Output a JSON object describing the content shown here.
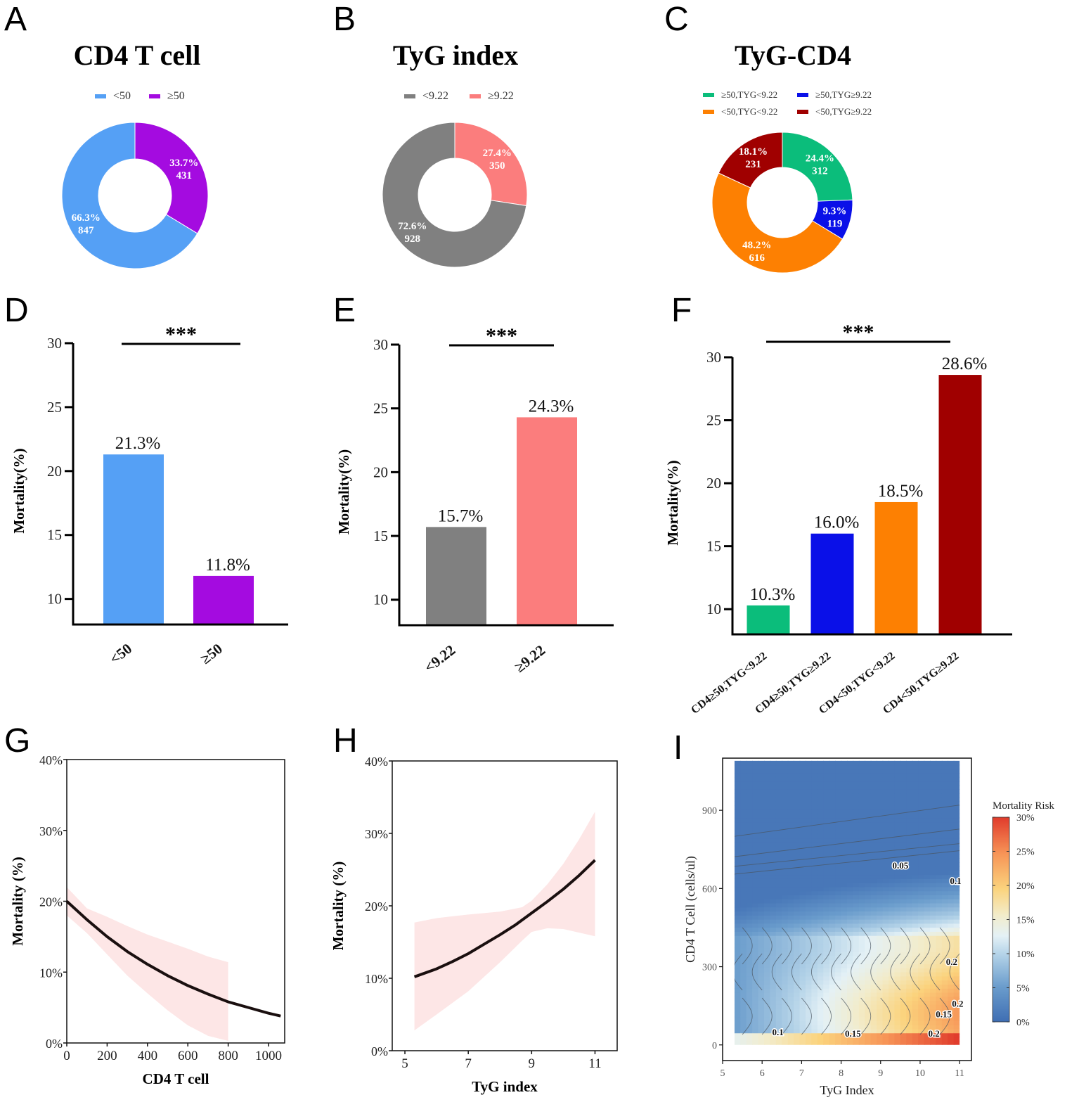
{
  "panels": {
    "A": "A",
    "B": "B",
    "C": "C",
    "D": "D",
    "E": "E",
    "F": "F",
    "G": "G",
    "H": "H",
    "I": "I"
  },
  "chart_data": [
    {
      "id": "A",
      "type": "pie",
      "donut": true,
      "title": "CD4 T cell",
      "legend": [
        {
          "label": "<50",
          "color": "#55a0f5"
        },
        {
          "label": "≥50",
          "color": "#a40be0"
        }
      ],
      "slices": [
        {
          "label": "≥50",
          "percent": "33.7%",
          "count": 431,
          "value": 33.7,
          "color": "#a40be0"
        },
        {
          "label": "<50",
          "percent": "66.3%",
          "count": 847,
          "value": 66.3,
          "color": "#55a0f5"
        }
      ]
    },
    {
      "id": "B",
      "type": "pie",
      "donut": true,
      "title": "TyG index",
      "legend": [
        {
          "label": "<9.22",
          "color": "#808080"
        },
        {
          "label": "≥9.22",
          "color": "#fb7d7d"
        }
      ],
      "slices": [
        {
          "label": "≥9.22",
          "percent": "27.4%",
          "count": 350,
          "value": 27.4,
          "color": "#fb7d7d"
        },
        {
          "label": "<9.22",
          "percent": "72.6%",
          "count": 928,
          "value": 72.6,
          "color": "#808080"
        }
      ]
    },
    {
      "id": "C",
      "type": "pie",
      "donut": true,
      "title": "TyG-CD4",
      "legend": [
        {
          "label": "≥50,TYG<9.22",
          "color": "#0bbd7b"
        },
        {
          "label": "≥50,TYG≥9.22",
          "color": "#0a10e8"
        },
        {
          "label": "<50,TYG<9.22",
          "color": "#fd8002"
        },
        {
          "label": "<50,TYG≥9.22",
          "color": "#a00000"
        }
      ],
      "slices": [
        {
          "label": "≥50,TYG<9.22",
          "percent": "24.4%",
          "count": 312,
          "value": 24.4,
          "color": "#0bbd7b"
        },
        {
          "label": "≥50,TYG≥9.22",
          "percent": "9.3%",
          "count": 119,
          "value": 9.3,
          "color": "#0a10e8"
        },
        {
          "label": "<50,TYG<9.22",
          "percent": "48.2%",
          "count": 616,
          "value": 48.2,
          "color": "#fd8002"
        },
        {
          "label": "<50,TYG≥9.22",
          "percent": "18.1%",
          "count": 231,
          "value": 18.1,
          "color": "#a00000"
        }
      ]
    },
    {
      "id": "D",
      "type": "bar",
      "title": "",
      "xlabel": "",
      "ylabel": "Mortality(%)",
      "ylim": [
        8,
        30
      ],
      "yticks": [
        10,
        15,
        20,
        25,
        30
      ],
      "categories": [
        "<50",
        "≥50"
      ],
      "values": [
        21.3,
        11.8
      ],
      "value_labels": [
        "21.3%",
        "11.8%"
      ],
      "colors": [
        "#55a0f5",
        "#a40be0"
      ],
      "significance": "***"
    },
    {
      "id": "E",
      "type": "bar",
      "title": "",
      "xlabel": "",
      "ylabel": "Mortality(%)",
      "ylim": [
        8,
        30
      ],
      "yticks": [
        10,
        15,
        20,
        25,
        30
      ],
      "categories": [
        "<9.22",
        "≥9.22"
      ],
      "values": [
        15.7,
        24.3
      ],
      "value_labels": [
        "15.7%",
        "24.3%"
      ],
      "colors": [
        "#808080",
        "#fb7d7d"
      ],
      "significance": "***"
    },
    {
      "id": "F",
      "type": "bar",
      "title": "",
      "xlabel": "",
      "ylabel": "Mortality(%)",
      "ylim": [
        8,
        30
      ],
      "yticks": [
        10,
        15,
        20,
        25,
        30
      ],
      "categories": [
        "CD4≥50,TYG<9.22",
        "CD4≥50,TYG≥9.22",
        "CD4<50,TYG<9.22",
        "CD4<50,TYG≥9.22"
      ],
      "values": [
        10.3,
        16.0,
        18.5,
        28.6
      ],
      "value_labels": [
        "10.3%",
        "16.0%",
        "18.5%",
        "28.6%"
      ],
      "colors": [
        "#0bbd7b",
        "#0a10e8",
        "#fd8002",
        "#a00000"
      ],
      "significance": "***"
    },
    {
      "id": "G",
      "type": "line",
      "title": "",
      "xlabel": "CD4 T cell",
      "ylabel": "Mortality (%)",
      "xlim": [
        0,
        1080
      ],
      "ylim": [
        0,
        40
      ],
      "xticks": [
        0,
        200,
        400,
        600,
        800,
        1000
      ],
      "yticks": [
        0,
        10,
        20,
        30,
        40
      ],
      "ytick_labels": [
        "0%",
        "10%",
        "20%",
        "30%",
        "40%"
      ],
      "series": [
        {
          "name": "fit",
          "x": [
            0,
            100,
            200,
            300,
            400,
            500,
            600,
            700,
            800,
            900,
            1000,
            1060
          ],
          "y": [
            20.0,
            17.4,
            15.0,
            12.9,
            11.1,
            9.5,
            8.1,
            6.9,
            5.8,
            5.0,
            4.2,
            3.8
          ]
        }
      ],
      "ci_band": {
        "x": [
          0,
          100,
          200,
          300,
          400,
          500,
          600,
          700,
          800
        ],
        "lower": [
          18.0,
          15.5,
          12.5,
          9.5,
          7.0,
          4.6,
          2.5,
          1.0,
          0.3
        ],
        "upper": [
          22.0,
          19.0,
          17.8,
          16.5,
          15.3,
          14.3,
          13.3,
          12.2,
          11.4
        ]
      }
    },
    {
      "id": "H",
      "type": "line",
      "title": "",
      "xlabel": "TyG index",
      "ylabel": "Mortality (%)",
      "xlim": [
        4.6,
        11.7
      ],
      "ylim": [
        0,
        40
      ],
      "xticks": [
        5,
        7,
        9,
        11
      ],
      "yticks": [
        0,
        10,
        20,
        30,
        40
      ],
      "ytick_labels": [
        "0%",
        "10%",
        "20%",
        "30%",
        "40%"
      ],
      "series": [
        {
          "name": "fit",
          "x": [
            5.3,
            6.0,
            6.5,
            7.0,
            7.5,
            8.0,
            8.5,
            9.0,
            9.5,
            10.0,
            10.5,
            11.0
          ],
          "y": [
            10.2,
            11.3,
            12.3,
            13.4,
            14.7,
            16.0,
            17.4,
            19.0,
            20.6,
            22.3,
            24.2,
            26.3
          ]
        }
      ],
      "ci_band": {
        "x": [
          5.3,
          6.0,
          7.0,
          8.0,
          8.7,
          9.0,
          9.5,
          10.0,
          10.5,
          11.0
        ],
        "lower": [
          2.8,
          5.0,
          8.2,
          12.2,
          15.2,
          16.4,
          16.9,
          16.8,
          16.3,
          15.8
        ],
        "upper": [
          17.7,
          18.3,
          18.8,
          19.2,
          19.8,
          20.7,
          23.0,
          25.8,
          29.2,
          33.0
        ]
      }
    },
    {
      "id": "I",
      "type": "heatmap",
      "title": "",
      "xlabel": "TyG Index",
      "ylabel": "CD4 T Cell (cells/ul)",
      "xlim": [
        5,
        11.3
      ],
      "ylim": [
        -60,
        1100
      ],
      "xticks": [
        5,
        6,
        7,
        8,
        9,
        10,
        11
      ],
      "yticks": [
        0,
        300,
        600,
        900
      ],
      "data_extent": {
        "x": [
          5.3,
          11.0
        ],
        "y": [
          0,
          1090
        ]
      },
      "colorbar": {
        "title": "Mortality Risk",
        "range": [
          0,
          30
        ],
        "ticks": [
          "0%",
          "5%",
          "10%",
          "15%",
          "20%",
          "25%",
          "30%"
        ]
      },
      "contour_labels": [
        {
          "text": "0.05",
          "x": 9.5,
          "y": 690
        },
        {
          "text": "0.1",
          "x": 10.9,
          "y": 630
        },
        {
          "text": "0.2",
          "x": 10.8,
          "y": 320
        },
        {
          "text": "0.2",
          "x": 10.95,
          "y": 160
        },
        {
          "text": "0.15",
          "x": 10.6,
          "y": 120
        },
        {
          "text": "0.1",
          "x": 6.4,
          "y": 50
        },
        {
          "text": "0.15",
          "x": 8.3,
          "y": 45
        },
        {
          "text": "0.2",
          "x": 10.35,
          "y": 45
        }
      ]
    }
  ]
}
